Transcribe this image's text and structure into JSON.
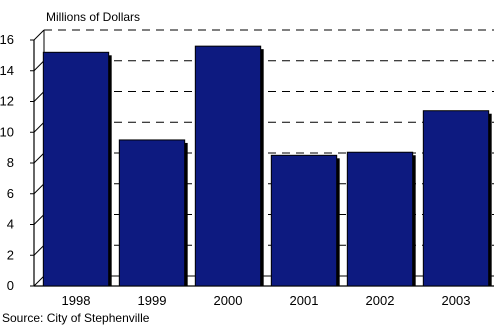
{
  "chart_data": {
    "type": "bar",
    "title": "",
    "ylabel": "Millions of Dollars",
    "xlabel": "",
    "categories": [
      "1998",
      "1999",
      "2000",
      "2001",
      "2002",
      "2003"
    ],
    "values": [
      15.2,
      9.5,
      15.6,
      8.5,
      8.7,
      11.4
    ],
    "ylim": [
      0,
      16
    ],
    "yticks": [
      "0",
      "2",
      "4",
      "6",
      "8",
      "10",
      "12",
      "14",
      "16"
    ],
    "grid": "dashed horizontal",
    "bar_color": "#0d1a80",
    "bar_edge_color": "#000000",
    "source": "Source:  City of Stephenville"
  }
}
